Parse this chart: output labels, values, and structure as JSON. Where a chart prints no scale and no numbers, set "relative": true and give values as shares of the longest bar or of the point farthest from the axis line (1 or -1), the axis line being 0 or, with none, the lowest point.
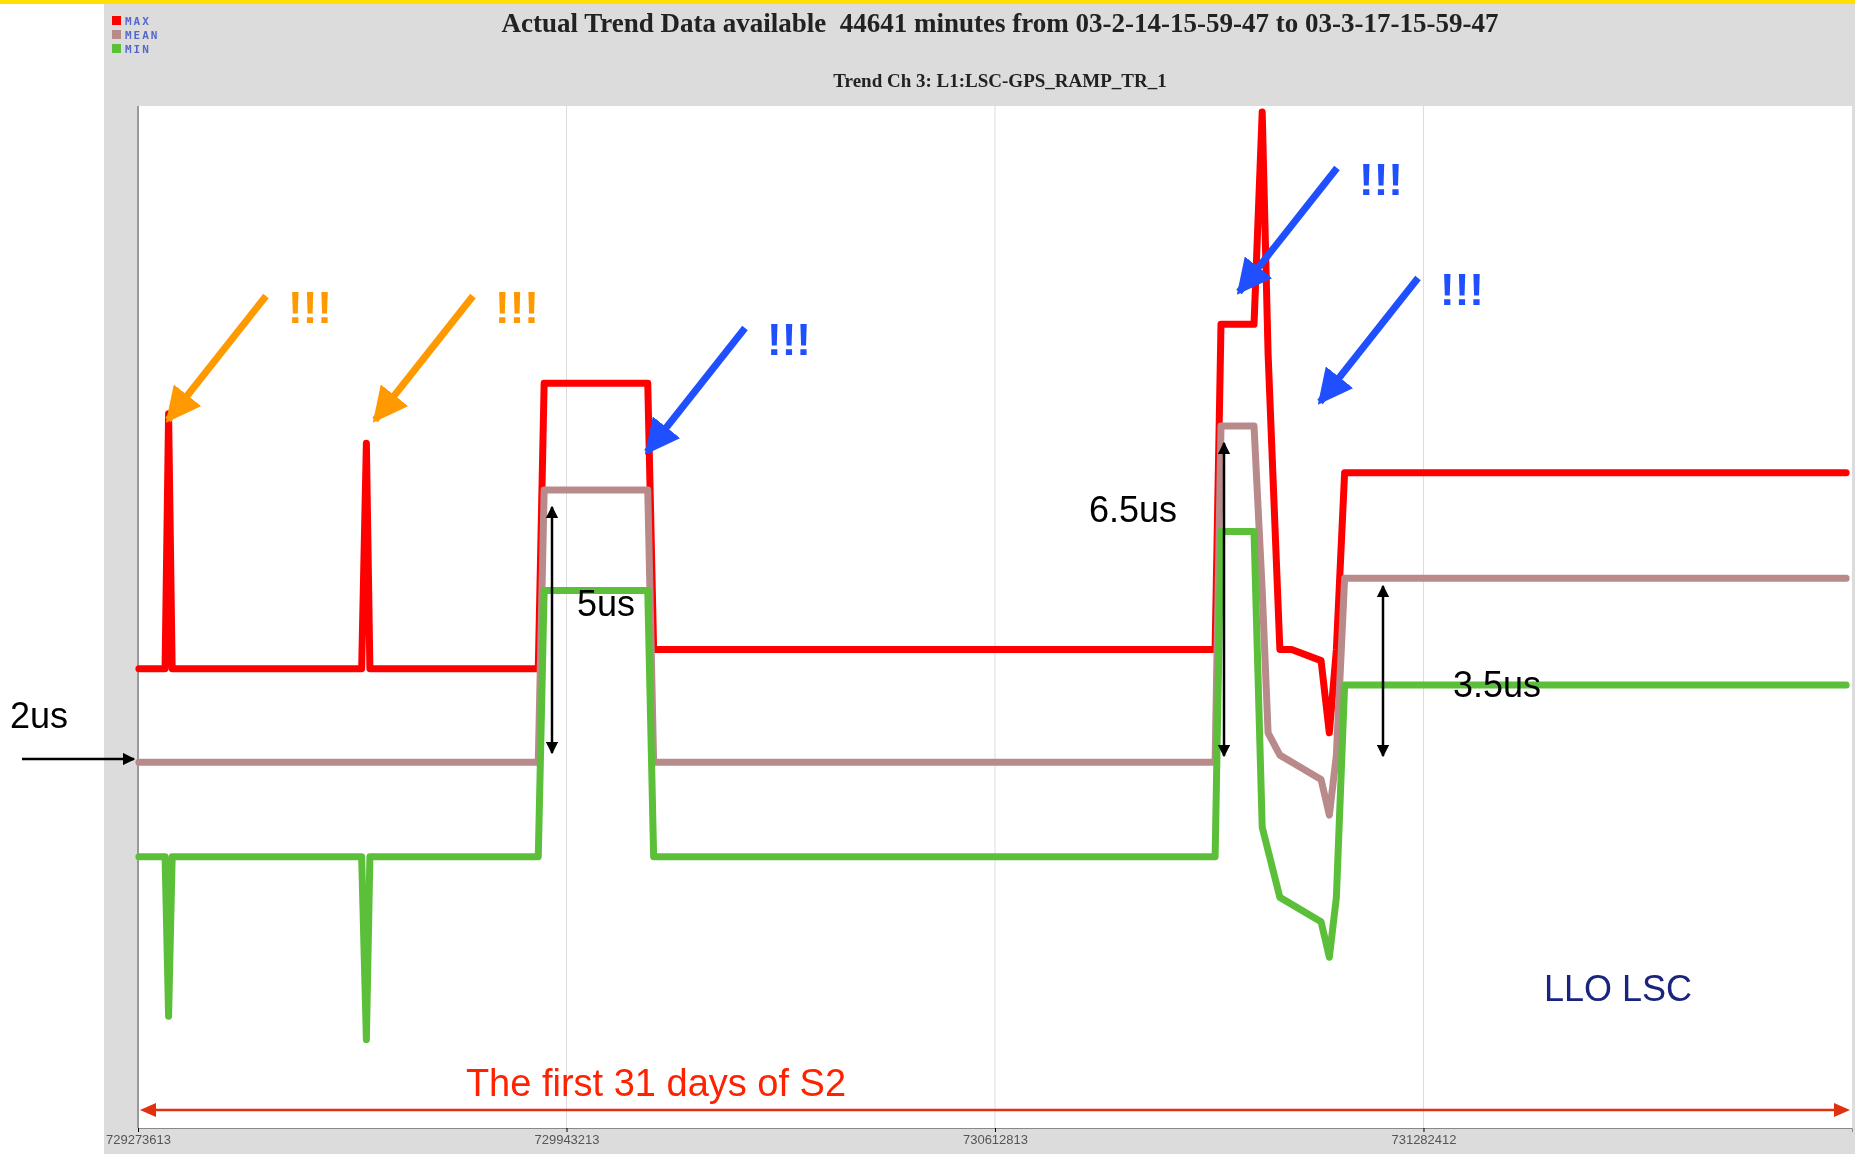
{
  "chart_data": {
    "type": "line",
    "title": "Actual Trend Data available  44641 minutes from 03-2-14-15-59-47 to 03-3-17-15-59-47",
    "subtitle": "Trend Ch 3: L1:LSC-GPS_RAMP_TR_1",
    "relative": true,
    "xlim": [
      729273613,
      731952073
    ],
    "xticks": [
      729273613,
      729943213,
      730612813,
      731282412
    ],
    "grid": "x",
    "legend": "top left",
    "marker": "none",
    "line_style": "solid",
    "series": [
      {
        "name": "MAX",
        "color": "#ff0000",
        "x": [
          729275000,
          729315900,
          729321400,
          729327000,
          729623100,
          729630500,
          729636000,
          729899100,
          729908300,
          730070200,
          730079400,
          730956800,
          730966000,
          731017600,
          731030400,
          731039600,
          731058000,
          731076400,
          731122400,
          731135300,
          731146300,
          731159200,
          731942900
        ],
        "values": [
          0.452,
          0.452,
          0.703,
          0.452,
          0.452,
          0.674,
          0.452,
          0.452,
          0.733,
          0.733,
          0.471,
          0.471,
          0.791,
          0.791,
          1,
          0.762,
          0.471,
          0.471,
          0.46,
          0.389,
          0.471,
          0.645,
          0.645
        ]
      },
      {
        "name": "MEAN",
        "color": "#b88a8a",
        "x": [
          729275000,
          729899100,
          729908300,
          730070200,
          730079400,
          730956800,
          730966000,
          731017600,
          731030400,
          731039600,
          731058000,
          731122400,
          731135300,
          731146300,
          731159200,
          731942900
        ],
        "values": [
          0.36,
          0.36,
          0.628,
          0.628,
          0.36,
          0.36,
          0.691,
          0.691,
          0.529,
          0.389,
          0.367,
          0.343,
          0.308,
          0.367,
          0.541,
          0.541
        ]
      },
      {
        "name": "MIN",
        "color": "#5bbf3a",
        "x": [
          729275000,
          729315900,
          729321400,
          729327000,
          729623100,
          729630500,
          729636000,
          729899100,
          729908300,
          730070200,
          730079400,
          730956800,
          730966000,
          731017600,
          731030400,
          731039600,
          731058000,
          731122400,
          731135300,
          731146300,
          731159200,
          731942900
        ],
        "values": [
          0.267,
          0.267,
          0.11,
          0.267,
          0.267,
          0.087,
          0.267,
          0.267,
          0.529,
          0.529,
          0.267,
          0.267,
          0.587,
          0.587,
          0.296,
          0.273,
          0.227,
          0.203,
          0.168,
          0.227,
          0.436,
          0.436
        ]
      }
    ],
    "annotations": [
      "!!!",
      "!!!",
      "!!!",
      "!!!",
      "!!!",
      "5us",
      "6.5us",
      "3.5us",
      "LLO LSC",
      "2us",
      "The first 31 days of S2"
    ]
  }
}
